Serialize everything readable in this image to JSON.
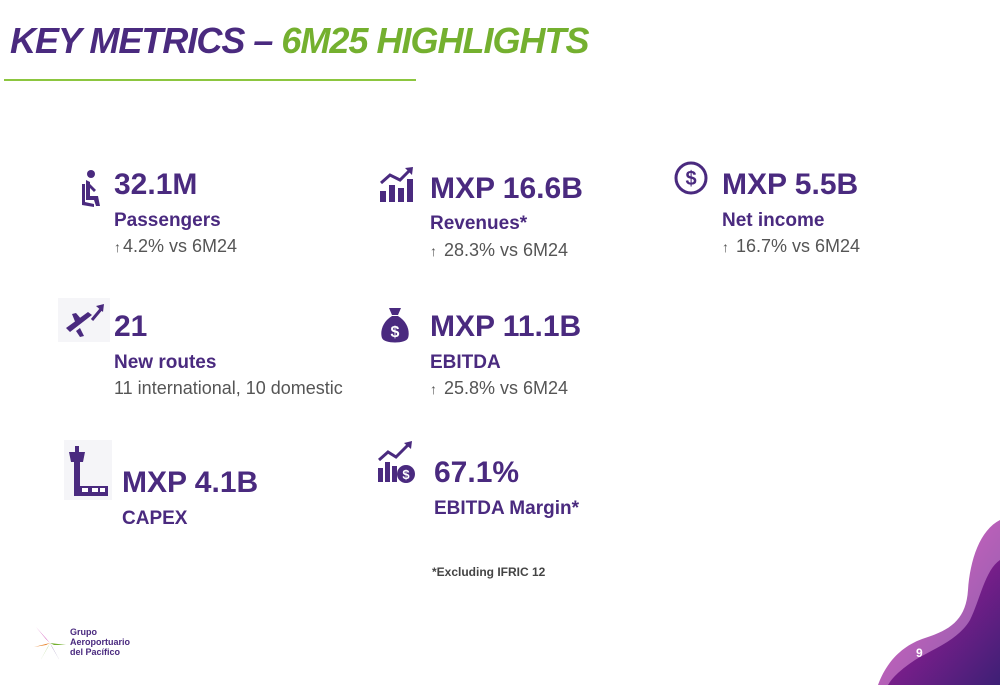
{
  "header": {
    "title_main": "KEY METRICS – ",
    "title_accent": "6M25 HIGHLIGHTS"
  },
  "metrics": {
    "passengers": {
      "value": "32.1M",
      "label": "Passengers",
      "arrow": "↑",
      "note": "4.2% vs 6M24",
      "icon": "passenger-seat-icon"
    },
    "revenues": {
      "value": "MXP 16.6B",
      "label": "Revenues*",
      "arrow": "↑",
      "note": " 28.3% vs 6M24",
      "icon": "bar-chart-trend-icon"
    },
    "net_income": {
      "value": "MXP 5.5B",
      "label": "Net income",
      "arrow": "↑",
      "note": " 16.7% vs 6M24",
      "icon": "dollar-circle-icon"
    },
    "new_routes": {
      "value": "21",
      "label": "New routes",
      "note": "11 international, 10 domestic",
      "icon": "airplane-takeoff-icon"
    },
    "ebitda": {
      "value": "MXP 11.1B",
      "label": "EBITDA",
      "arrow": "↑",
      "note": " 25.8% vs 6M24",
      "icon": "money-bag-icon"
    },
    "capex": {
      "value": "MXP 4.1B",
      "label": "CAPEX",
      "icon": "control-tower-icon"
    },
    "ebitda_margin": {
      "value": "67.1%",
      "label": "EBITDA Margin*",
      "icon": "growth-chart-dollar-icon"
    }
  },
  "footnote": "*Excluding IFRIC 12",
  "footer": {
    "logo_line1": "Grupo",
    "logo_line2": "Aeroportuario",
    "logo_line3": "del Pacífico",
    "page_number": "9"
  },
  "colors": {
    "primary_purple": "#4a2a7f",
    "accent_green": "#74b02f",
    "text_gray": "#555555",
    "wave_magenta": "#c01aa0"
  }
}
